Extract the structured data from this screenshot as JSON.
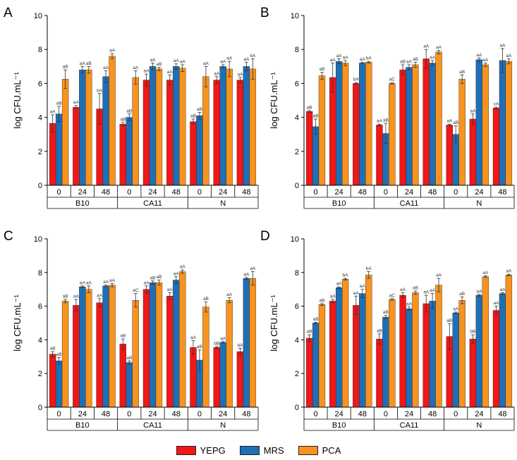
{
  "colors": {
    "YEPG": "#f21616",
    "MRS": "#1f6fb6",
    "PCA": "#f7931e"
  },
  "legend": [
    "YEPG",
    "MRS",
    "PCA"
  ],
  "chart_data": [
    {
      "type": "bar",
      "panel_label": "A",
      "ylabel": "log CFU.mL⁻¹",
      "ylim": [
        0,
        10
      ],
      "yticks": [
        0,
        2,
        4,
        6,
        8,
        10
      ],
      "groups": [
        "B10",
        "CA11",
        "N"
      ],
      "times": [
        "0",
        "24",
        "48"
      ],
      "series": [
        {
          "name": "YEPG",
          "values": [
            3.65,
            4.6,
            4.5,
            3.6,
            6.2,
            6.2,
            3.75,
            6.2,
            6.2
          ],
          "errors": [
            0.5,
            0.1,
            0.9,
            0.1,
            0.35,
            0.3,
            0.15,
            0.2,
            0.15
          ],
          "letters": [
            "aA",
            "aA",
            "bA",
            "aB",
            "aA",
            "aA",
            "aB",
            "aA",
            "aA"
          ]
        },
        {
          "name": "MRS",
          "values": [
            4.2,
            6.8,
            6.4,
            4.0,
            7.0,
            7.0,
            4.1,
            7.0,
            7.0
          ],
          "errors": [
            0.45,
            0.2,
            0.35,
            0.2,
            0.2,
            0.15,
            0.2,
            0.1,
            0.25
          ],
          "letters": [
            "aB",
            "aA",
            "aA",
            "aB",
            "aA",
            "aA",
            "aB",
            "aA",
            "aA"
          ]
        },
        {
          "name": "PCA",
          "values": [
            6.25,
            6.8,
            7.6,
            6.35,
            6.85,
            6.9,
            6.4,
            6.85,
            6.85
          ],
          "errors": [
            0.55,
            0.2,
            0.15,
            0.4,
            0.1,
            0.2,
            0.6,
            0.45,
            0.6
          ],
          "letters": [
            "aB",
            "aB",
            "aA",
            "aA",
            "aB",
            "aA",
            "aA",
            "aA",
            "bA"
          ]
        }
      ]
    },
    {
      "type": "bar",
      "panel_label": "B",
      "ylabel": "log CFU.mL⁻¹",
      "ylim": [
        0,
        10
      ],
      "yticks": [
        0,
        2,
        4,
        6,
        8,
        10
      ],
      "groups": [
        "B10",
        "CA11",
        "N"
      ],
      "times": [
        "0",
        "24",
        "48"
      ],
      "series": [
        {
          "name": "YEPG",
          "values": [
            4.35,
            6.35,
            6.0,
            3.55,
            6.8,
            7.45,
            3.55,
            3.9,
            4.55
          ],
          "errors": [
            0.05,
            0.85,
            0.05,
            0.05,
            0.3,
            0.55,
            0.05,
            0.3,
            0.05
          ],
          "letters": [
            "aB",
            "aA",
            "bA",
            "aA",
            "aB",
            "aA",
            "aA",
            "aA",
            "cA"
          ]
        },
        {
          "name": "MRS",
          "values": [
            3.45,
            7.3,
            7.2,
            3.05,
            6.95,
            7.2,
            3.0,
            7.4,
            7.35
          ],
          "errors": [
            0.45,
            0.15,
            0.05,
            0.6,
            0.15,
            0.15,
            0.5,
            0.1,
            0.7
          ],
          "letters": [
            "aB",
            "aA",
            "aA",
            "aB",
            "aA",
            "aA",
            "aB",
            "aA",
            "aA"
          ]
        },
        {
          "name": "PCA",
          "values": [
            6.45,
            7.2,
            7.25,
            6.0,
            7.1,
            7.85,
            6.25,
            7.1,
            7.3
          ],
          "errors": [
            0.2,
            0.15,
            0.05,
            0.05,
            0.15,
            0.1,
            0.25,
            0.1,
            0.15
          ],
          "letters": [
            "aB",
            "aA",
            "bA",
            "aC",
            "aB",
            "aA",
            "aB",
            "aA",
            "aA"
          ]
        }
      ]
    },
    {
      "type": "bar",
      "panel_label": "C",
      "ylabel": "log CFU.mL⁻¹",
      "ylim": [
        0,
        10
      ],
      "yticks": [
        0,
        2,
        4,
        6,
        8,
        10
      ],
      "groups": [
        "B10",
        "CA11",
        "N"
      ],
      "times": [
        "0",
        "24",
        "48"
      ],
      "series": [
        {
          "name": "YEPG",
          "values": [
            3.15,
            6.05,
            6.2,
            3.75,
            7.0,
            6.6,
            3.55,
            3.55,
            3.3
          ],
          "errors": [
            0.15,
            0.35,
            0.25,
            0.3,
            0.2,
            0.2,
            0.4,
            0.05,
            0.2
          ],
          "letters": [
            "aB",
            "aA",
            "aA",
            "aB",
            "aA",
            "aA",
            "aA",
            "bB",
            "bA"
          ]
        },
        {
          "name": "MRS",
          "values": [
            2.75,
            7.15,
            7.2,
            2.65,
            7.4,
            7.55,
            2.8,
            3.85,
            7.65
          ],
          "errors": [
            0.2,
            0.05,
            0.05,
            0.1,
            0.1,
            0.2,
            0.6,
            0.05,
            0.05
          ],
          "letters": [
            "aB",
            "aA",
            "aA",
            "aB",
            "aB",
            "aA",
            "aB",
            "aA",
            "aA"
          ]
        },
        {
          "name": "PCA",
          "values": [
            6.3,
            7.0,
            7.25,
            6.35,
            7.4,
            8.05,
            5.95,
            6.35,
            7.65
          ],
          "errors": [
            0.1,
            0.2,
            0.1,
            0.4,
            0.15,
            0.1,
            0.3,
            0.15,
            0.4
          ],
          "letters": [
            "aB",
            "aA",
            "aA",
            "aC",
            "aB",
            "aA",
            "aB",
            "aA",
            "aA"
          ]
        }
      ]
    },
    {
      "type": "bar",
      "panel_label": "D",
      "ylabel": "log CFU.mL⁻¹",
      "ylim": [
        0,
        10
      ],
      "yticks": [
        0,
        2,
        4,
        6,
        8,
        10
      ],
      "groups": [
        "B10",
        "CA11",
        "N"
      ],
      "times": [
        "0",
        "24",
        "48"
      ],
      "series": [
        {
          "name": "YEPG",
          "values": [
            4.1,
            6.3,
            6.05,
            4.05,
            6.65,
            6.15,
            4.2,
            4.05,
            5.75
          ],
          "errors": [
            0.2,
            0.1,
            0.55,
            0.3,
            0.15,
            0.5,
            0.75,
            0.25,
            0.25
          ],
          "letters": [
            "aB",
            "aA",
            "aA",
            "aB",
            "aA",
            "aA",
            "aB",
            "bB",
            "aA"
          ]
        },
        {
          "name": "MRS",
          "values": [
            5.0,
            7.1,
            6.75,
            5.35,
            5.85,
            6.3,
            5.6,
            6.65,
            6.75
          ],
          "errors": [
            0.05,
            0.05,
            0.25,
            0.1,
            0.1,
            0.45,
            0.05,
            0.05,
            0.05
          ],
          "letters": [
            "aB",
            "aA",
            "aA",
            "aB",
            "aA",
            "aA",
            "aA",
            "aA",
            "aA"
          ]
        },
        {
          "name": "PCA",
          "values": [
            6.1,
            7.6,
            7.85,
            6.4,
            6.8,
            7.25,
            6.35,
            7.75,
            7.85
          ],
          "errors": [
            0.05,
            0.05,
            0.2,
            0.05,
            0.1,
            0.4,
            0.2,
            0.05,
            0.05
          ],
          "letters": [
            "aB",
            "bA",
            "bA",
            "aC",
            "aB",
            "aA",
            "aB",
            "aA",
            "aA"
          ]
        }
      ]
    }
  ]
}
